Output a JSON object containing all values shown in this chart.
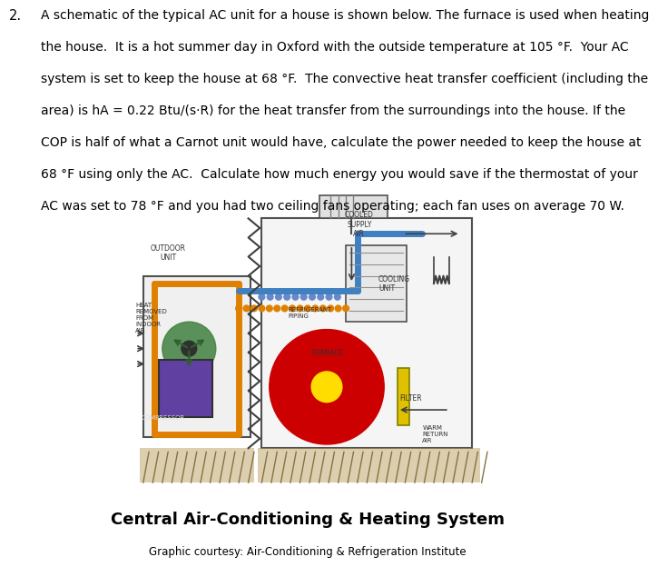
{
  "title": "Central Air-Conditioning & Heating System",
  "subtitle": "Graphic courtesy: Air-Conditioning & Refrigeration Institute",
  "question_number": "2.",
  "question_text": "A schematic of the typical AC unit for a house is shown below. The furnace is used when heating\nthe house.  It is a hot summer day in Oxford with the outside temperature at 105 °F.  Your AC\nsystem is set to keep the house at 68 °F.  The convective heat transfer coefficient (including the\narea) is hA = 0.22 Btu/(s·R) for the heat transfer from the surroundings into the house. If the\nCOP is half of what a Carnot unit would have, calculate the power needed to keep the house at\n68 °F using only the AC.  Calculate how much energy you would save if the thermostat of your\nAC was set to 78 °F and you had two ceiling fans operating; each fan uses on average 70 W.",
  "bg_color": "#ffffff",
  "text_color": "#000000",
  "diagram_bg": "#ffffff",
  "outdoor_unit_color": "#d0d0d0",
  "indoor_unit_color": "#d0d0d0",
  "pipe_orange": "#e08000",
  "pipe_blue": "#4080c0",
  "furnace_red": "#cc0000",
  "furnace_yellow": "#ffdd00",
  "compressor_purple": "#6040a0",
  "fan_green": "#408040",
  "bead_orange": "#e08000",
  "bead_blue": "#6080c0",
  "filter_yellow": "#e0c000",
  "ground_color": "#b8a060"
}
